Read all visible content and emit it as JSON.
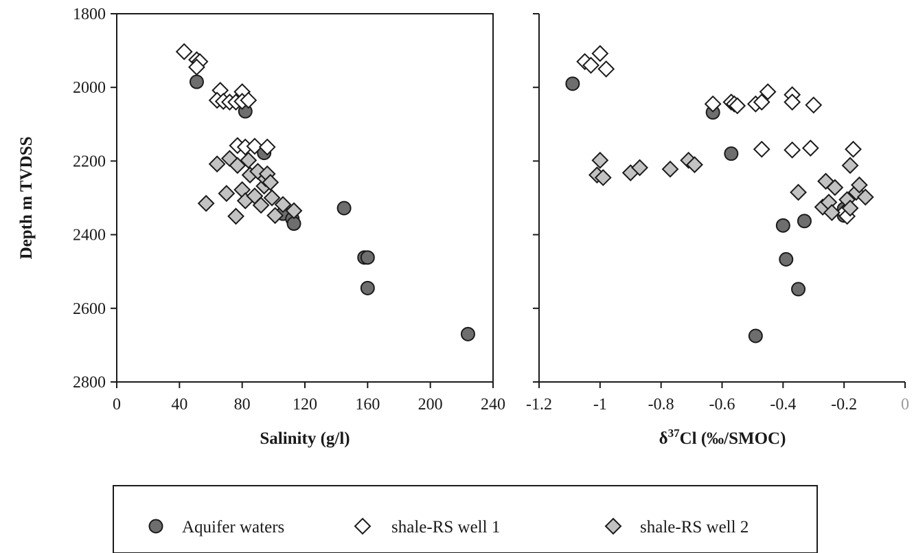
{
  "chart_data": {
    "type": "scatter",
    "y_axis": {
      "label": "Depth m TVDSS",
      "lim": [
        1800,
        2800
      ],
      "ticks": [
        "1800",
        "2000",
        "2200",
        "2400",
        "2600",
        "2800"
      ],
      "inverted": true
    },
    "panels": [
      {
        "xlabel": "Salinity (g/l)",
        "xlim": [
          0,
          240
        ],
        "xticks": [
          "0",
          "40",
          "80",
          "120",
          "160",
          "200",
          "240"
        ],
        "series": [
          {
            "name": "Aquifer waters",
            "points": [
              [
                51,
                1985
              ],
              [
                82,
                2065
              ],
              [
                94,
                2178
              ],
              [
                106,
                2343
              ],
              [
                112,
                2357
              ],
              [
                113,
                2370
              ],
              [
                145,
                2328
              ],
              [
                158,
                2462
              ],
              [
                160,
                2462
              ],
              [
                160,
                2545
              ],
              [
                224,
                2670
              ]
            ]
          },
          {
            "name": "shale-RS well 1",
            "points": [
              [
                43,
                1903
              ],
              [
                51,
                1925
              ],
              [
                53,
                1930
              ],
              [
                51,
                1945
              ],
              [
                66,
                2008
              ],
              [
                80,
                2012
              ],
              [
                64,
                2035
              ],
              [
                68,
                2038
              ],
              [
                72,
                2040
              ],
              [
                76,
                2040
              ],
              [
                80,
                2038
              ],
              [
                84,
                2035
              ],
              [
                77,
                2158
              ],
              [
                82,
                2162
              ],
              [
                88,
                2160
              ],
              [
                96,
                2162
              ]
            ]
          },
          {
            "name": "shale-RS well 2",
            "points": [
              [
                57,
                2315
              ],
              [
                64,
                2208
              ],
              [
                70,
                2288
              ],
              [
                72,
                2193
              ],
              [
                76,
                2350
              ],
              [
                77,
                2212
              ],
              [
                80,
                2278
              ],
              [
                82,
                2308
              ],
              [
                84,
                2198
              ],
              [
                85,
                2238
              ],
              [
                88,
                2295
              ],
              [
                90,
                2228
              ],
              [
                92,
                2320
              ],
              [
                94,
                2268
              ],
              [
                95,
                2248
              ],
              [
                96,
                2235
              ],
              [
                98,
                2258
              ],
              [
                99,
                2300
              ],
              [
                101,
                2348
              ],
              [
                106,
                2318
              ],
              [
                113,
                2335
              ]
            ]
          }
        ]
      },
      {
        "xlabel_main": "Cl (‰/SMOC)",
        "xlabel_prefix": "δ",
        "xlabel_sup": "37",
        "xlim": [
          -1.2,
          0
        ],
        "xticks": [
          "-1.2",
          "-1",
          "-0.8",
          "-0.6",
          "-0.4",
          "-0.2",
          "0"
        ],
        "series": [
          {
            "name": "Aquifer waters",
            "points": [
              [
                -1.09,
                1990
              ],
              [
                -0.63,
                2068
              ],
              [
                -0.57,
                2180
              ],
              [
                -0.4,
                2375
              ],
              [
                -0.39,
                2467
              ],
              [
                -0.35,
                2548
              ],
              [
                -0.33,
                2363
              ],
              [
                -0.49,
                2675
              ],
              [
                -0.2,
                2330
              ],
              [
                -0.2,
                2348
              ]
            ]
          },
          {
            "name": "shale-RS well 1",
            "points": [
              [
                -1.05,
                1930
              ],
              [
                -1.03,
                1940
              ],
              [
                -1.0,
                1908
              ],
              [
                -0.98,
                1950
              ],
              [
                -0.63,
                2045
              ],
              [
                -0.57,
                2040
              ],
              [
                -0.56,
                2045
              ],
              [
                -0.55,
                2050
              ],
              [
                -0.49,
                2045
              ],
              [
                -0.47,
                2040
              ],
              [
                -0.45,
                2012
              ],
              [
                -0.37,
                2020
              ],
              [
                -0.37,
                2040
              ],
              [
                -0.3,
                2048
              ],
              [
                -0.47,
                2168
              ],
              [
                -0.37,
                2170
              ],
              [
                -0.31,
                2165
              ],
              [
                -0.17,
                2168
              ],
              [
                -0.2,
                2340
              ],
              [
                -0.19,
                2350
              ]
            ]
          },
          {
            "name": "shale-RS well 2",
            "points": [
              [
                -1.0,
                2198
              ],
              [
                -1.01,
                2238
              ],
              [
                -0.99,
                2245
              ],
              [
                -0.9,
                2232
              ],
              [
                -0.87,
                2218
              ],
              [
                -0.77,
                2222
              ],
              [
                -0.71,
                2198
              ],
              [
                -0.69,
                2210
              ],
              [
                -0.35,
                2285
              ],
              [
                -0.26,
                2255
              ],
              [
                -0.23,
                2272
              ],
              [
                -0.27,
                2325
              ],
              [
                -0.25,
                2312
              ],
              [
                -0.24,
                2340
              ],
              [
                -0.18,
                2212
              ],
              [
                -0.19,
                2305
              ],
              [
                -0.16,
                2285
              ],
              [
                -0.15,
                2265
              ],
              [
                -0.13,
                2298
              ],
              [
                -0.18,
                2328
              ]
            ]
          }
        ]
      }
    ],
    "legend": {
      "position": "bottom",
      "entries": [
        {
          "name": "Aquifer waters",
          "marker": "circle",
          "fill": "#6e6e6e"
        },
        {
          "name": "shale-RS well 1",
          "marker": "diamond",
          "fill": "#ffffff"
        },
        {
          "name": "shale-RS well 2",
          "marker": "diamond",
          "fill": "#c2c2c2"
        }
      ]
    },
    "colors": {
      "axis": "#1a1a1a",
      "aquifer": "#6e6e6e",
      "well1": "#ffffff",
      "well2": "#c2c2c2",
      "faded_tick": "#9a9a9a"
    }
  }
}
